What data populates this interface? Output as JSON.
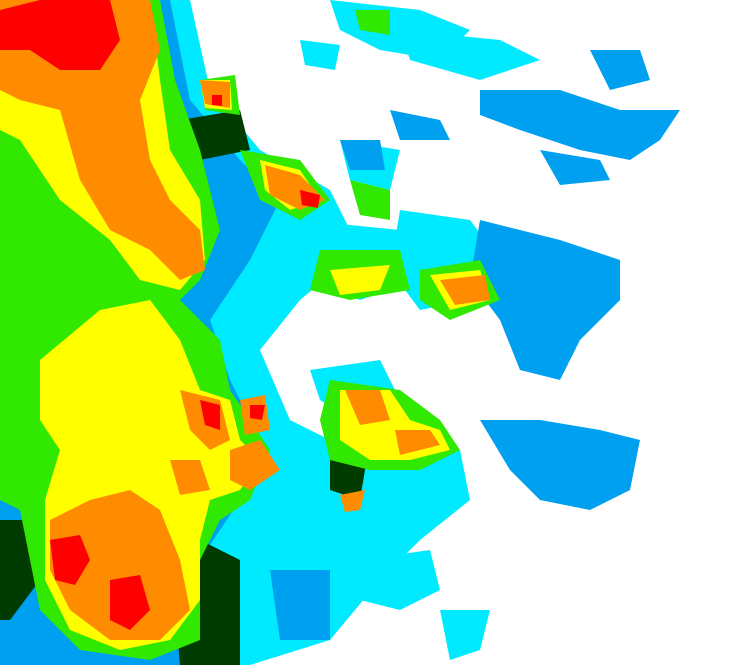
{
  "map": {
    "type": "weather-radar-reflectivity",
    "background": "#ffffff",
    "levels": [
      {
        "name": "light-cyan",
        "color": "#00eaff"
      },
      {
        "name": "blue",
        "color": "#00a0f0"
      },
      {
        "name": "dark-green",
        "color": "#003c00"
      },
      {
        "name": "green",
        "color": "#30e800"
      },
      {
        "name": "yellow",
        "color": "#ffff00"
      },
      {
        "name": "orange",
        "color": "#ff8c00"
      },
      {
        "name": "red",
        "color": "#ff0000"
      }
    ]
  }
}
